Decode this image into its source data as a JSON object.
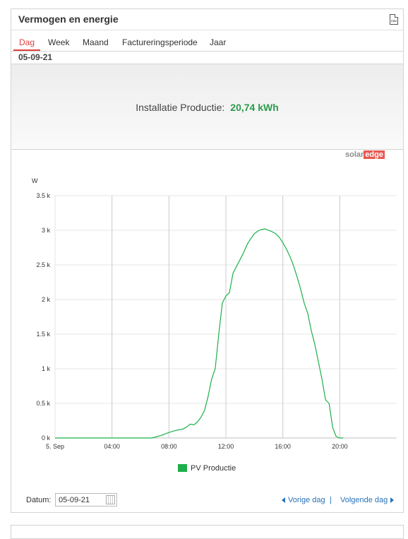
{
  "panel": {
    "title": "Vermogen en energie",
    "export_icon": "csv-export-icon"
  },
  "tabs": [
    {
      "label": "Dag",
      "active": true
    },
    {
      "label": "Week",
      "active": false
    },
    {
      "label": "Maand",
      "active": false
    },
    {
      "label": "Factureringsperiode",
      "active": false
    },
    {
      "label": "Jaar",
      "active": false
    }
  ],
  "current_date": "05-09-21",
  "summary": {
    "label": "Installatie Productie:",
    "value": "20,74 kWh"
  },
  "logo": {
    "part1": "solar",
    "part2": "edge"
  },
  "chart_data": {
    "type": "line",
    "ylabel": "W",
    "y_ticks": [
      "0 k",
      "0.5 k",
      "1 k",
      "1.5 k",
      "2 k",
      "2.5 k",
      "3 k",
      "3.5 k"
    ],
    "ylim": [
      0,
      3500
    ],
    "x_ticks": [
      "5. Sep",
      "04:00",
      "08:00",
      "12:00",
      "16:00",
      "20:00"
    ],
    "x_hours": [
      0,
      4,
      8,
      12,
      16,
      20
    ],
    "xlim_hours": [
      0,
      24
    ],
    "series": [
      {
        "name": "PV Productie",
        "color": "#1db04a",
        "x": [
          0,
          6.75,
          7.0,
          7.5,
          8.0,
          8.5,
          9.0,
          9.25,
          9.5,
          9.75,
          10.0,
          10.25,
          10.5,
          10.75,
          11.0,
          11.25,
          11.5,
          11.75,
          12.0,
          12.25,
          12.5,
          12.75,
          13.0,
          13.25,
          13.5,
          13.75,
          14.0,
          14.25,
          14.5,
          14.75,
          15.0,
          15.25,
          15.5,
          15.75,
          16.0,
          16.25,
          16.5,
          16.75,
          17.0,
          17.25,
          17.5,
          17.75,
          18.0,
          18.25,
          18.5,
          18.75,
          19.0,
          19.25,
          19.5,
          19.75,
          20.0,
          20.25
        ],
        "y": [
          0,
          0,
          10,
          40,
          80,
          110,
          130,
          160,
          200,
          190,
          230,
          300,
          400,
          600,
          850,
          1000,
          1500,
          1950,
          2050,
          2100,
          2380,
          2480,
          2580,
          2680,
          2800,
          2880,
          2950,
          2990,
          3010,
          3020,
          3000,
          2980,
          2950,
          2900,
          2820,
          2730,
          2620,
          2490,
          2330,
          2150,
          1950,
          1800,
          1550,
          1350,
          1100,
          850,
          550,
          500,
          150,
          20,
          0,
          0
        ]
      }
    ]
  },
  "footer": {
    "date_label": "Datum:",
    "date_value": "05-09-21",
    "prev_label": "Vorige dag",
    "separator": "|",
    "next_label": "Volgende dag"
  }
}
